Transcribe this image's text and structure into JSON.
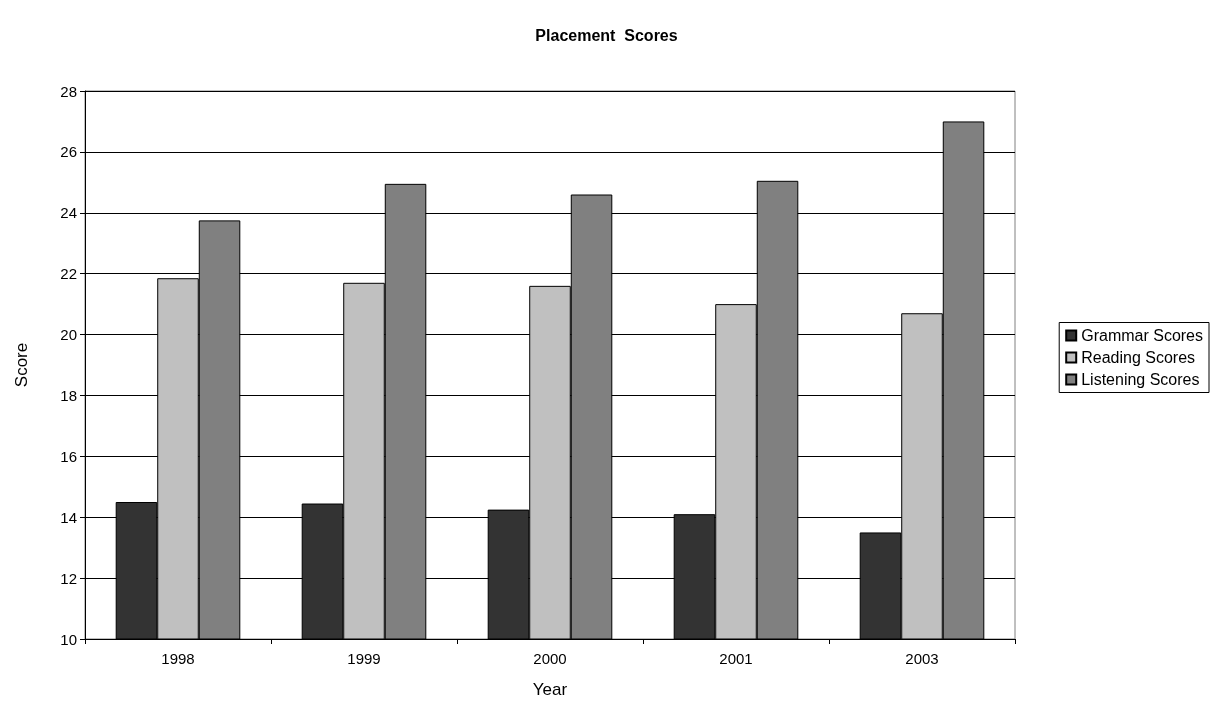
{
  "chart_data": {
    "type": "bar",
    "title": "Placement  Scores",
    "xlabel": "Year",
    "ylabel": "Score",
    "categories": [
      "1998",
      "1999",
      "2000",
      "2001",
      "2003"
    ],
    "series": [
      {
        "name": "Grammar Scores",
        "color": "#333333",
        "values": [
          14.5,
          14.45,
          14.25,
          14.1,
          13.5
        ]
      },
      {
        "name": "Reading Scores",
        "color": "#c0c0c0",
        "values": [
          21.85,
          21.7,
          21.6,
          21.0,
          20.7
        ]
      },
      {
        "name": "Listening Scores",
        "color": "#808080",
        "values": [
          23.75,
          24.95,
          24.6,
          25.05,
          27.0
        ]
      }
    ],
    "ylim": [
      10,
      28
    ],
    "yticks": [
      10,
      12,
      14,
      16,
      18,
      20,
      22,
      24,
      26,
      28
    ],
    "grid": "y",
    "legend": "right"
  }
}
